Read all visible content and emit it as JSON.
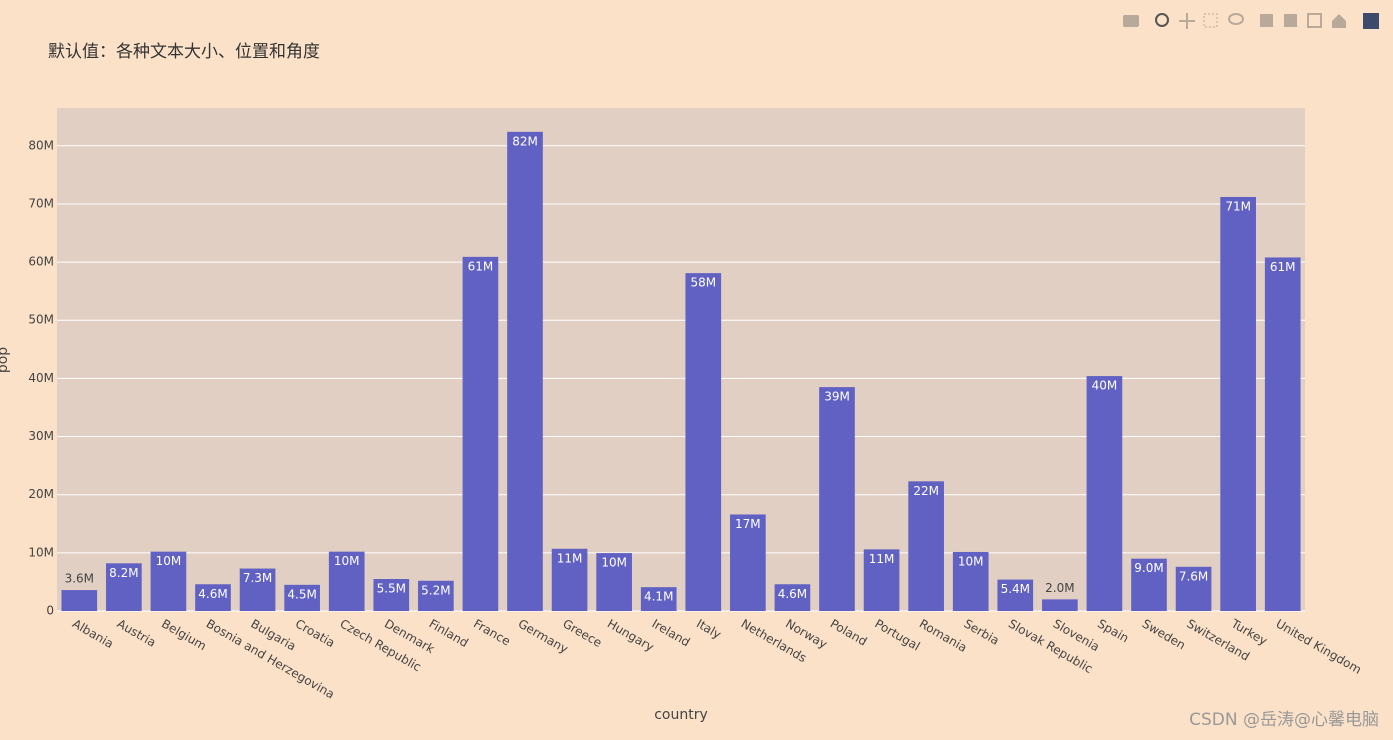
{
  "chart_data": {
    "type": "bar",
    "title": "默认值：各种文本大小、位置和角度",
    "x_label": "country",
    "y_label": "pop",
    "watermark": "CSDN @岳涛@心馨电脑",
    "categories": [
      "Albania",
      "Austria",
      "Belgium",
      "Bosnia and Herzegovina",
      "Bulgaria",
      "Croatia",
      "Czech Republic",
      "Denmark",
      "Finland",
      "France",
      "Germany",
      "Greece",
      "Hungary",
      "Ireland",
      "Italy",
      "Netherlands",
      "Norway",
      "Poland",
      "Portugal",
      "Romania",
      "Serbia",
      "Slovak Republic",
      "Slovenia",
      "Spain",
      "Sweden",
      "Switzerland",
      "Turkey",
      "United Kingdom"
    ],
    "values": [
      3600000,
      8200000,
      10200000,
      4600000,
      7300000,
      4500000,
      10200000,
      5500000,
      5200000,
      60900000,
      82400000,
      10700000,
      9960000,
      4100000,
      58100000,
      16600000,
      4600000,
      38500000,
      10600000,
      22300000,
      10150000,
      5400000,
      2000000,
      40400000,
      9000000,
      7600000,
      71200000,
      60800000
    ],
    "value_labels": [
      "3.6M",
      "8.2M",
      "10M",
      "4.6M",
      "7.3M",
      "4.5M",
      "10M",
      "5.5M",
      "5.2M",
      "61M",
      "82M",
      "11M",
      "10M",
      "4.1M",
      "58M",
      "17M",
      "4.6M",
      "39M",
      "11M",
      "22M",
      "10M",
      "5.4M",
      "2.0M",
      "40M",
      "9.0M",
      "7.6M",
      "71M",
      "61M"
    ],
    "color": "#6161c4",
    "ylim": [
      0,
      86500000
    ],
    "yticks": [
      0,
      {
        "value": 10000000,
        "label": "10M"
      },
      {
        "value": 20000000,
        "label": "20M"
      },
      {
        "value": 30000000,
        "label": "30M"
      },
      {
        "value": 40000000,
        "label": "40M"
      },
      {
        "value": 50000000,
        "label": "50M"
      },
      {
        "value": 60000000,
        "label": "60M"
      },
      {
        "value": 70000000,
        "label": "70M"
      },
      {
        "value": 80000000,
        "label": "80M"
      }
    ],
    "grid": true
  }
}
